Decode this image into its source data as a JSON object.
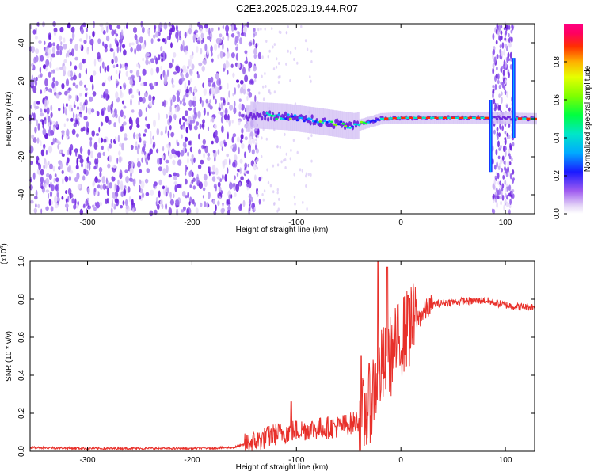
{
  "page": {
    "title": "C2E3.2025.029.19.44.R07"
  },
  "chart_data": [
    {
      "type": "heatmap",
      "title": "C2E3.2025.029.19.44.R07",
      "xlabel": "Height of straight line (km)",
      "ylabel": "Frequency (Hz)",
      "xlim": [
        -355,
        128
      ],
      "ylim": [
        -50,
        50
      ],
      "xticks": [
        -300,
        -200,
        -100,
        0,
        100
      ],
      "yticks": [
        -40,
        -20,
        0,
        20,
        40
      ],
      "xtick_labels": [
        "-300",
        "-200",
        "-100",
        "0",
        "100"
      ],
      "ytick_labels": [
        "-40",
        "-20",
        "0",
        "20",
        "40"
      ],
      "colorbar": {
        "label": "Normalized spectral amplitude",
        "range": [
          0,
          1
        ],
        "ticks": [
          0.0,
          0.2,
          0.4,
          0.6,
          0.8
        ],
        "tick_labels": [
          "0.0",
          "0.2",
          "0.4",
          "0.6",
          "0.8"
        ]
      },
      "regions": [
        {
          "name": "noise",
          "x": [
            -355,
            -135
          ],
          "amplitude": 0.1
        },
        {
          "name": "signal",
          "x": [
            -150,
            128
          ],
          "center_freq": 0,
          "amplitude": 0.9
        },
        {
          "name": "noise-band",
          "x": [
            88,
            108
          ],
          "amplitude": 0.1
        }
      ],
      "signal_center": [
        {
          "x": -145,
          "y": 2
        },
        {
          "x": -110,
          "y": 1
        },
        {
          "x": -70,
          "y": -2
        },
        {
          "x": -45,
          "y": -4
        },
        {
          "x": -20,
          "y": 0
        },
        {
          "x": 0,
          "y": 0.5
        },
        {
          "x": 85,
          "y": 0.5
        },
        {
          "x": 128,
          "y": 0
        }
      ]
    },
    {
      "type": "line",
      "xlabel": "Height of straight line (km)",
      "ylabel": "SNR (10 * v/v)",
      "yscale_note": "(x10",
      "yscale_exp": "4",
      "yscale_close": ")",
      "xlim": [
        -355,
        128
      ],
      "ylim": [
        0,
        1.0
      ],
      "xticks": [
        -300,
        -200,
        -100,
        0,
        100
      ],
      "yticks": [
        0.0,
        0.2,
        0.4,
        0.6,
        0.8,
        1.0
      ],
      "xtick_labels": [
        "-300",
        "-200",
        "-100",
        "0",
        "100"
      ],
      "ytick_labels": [
        "0.0",
        "0.2",
        "0.4",
        "0.6",
        "0.8",
        "1.0"
      ],
      "series": [
        {
          "color": "#e8302a",
          "x": [
            -355,
            -300,
            -250,
            -200,
            -160,
            -140,
            -120,
            -100,
            -80,
            -60,
            -45,
            -35,
            -30,
            -25,
            -20,
            -15,
            -10,
            -5,
            0,
            5,
            10,
            15,
            20,
            25,
            30,
            40,
            50,
            60,
            70,
            80,
            90,
            100,
            110,
            128
          ],
          "y": [
            0.02,
            0.015,
            0.015,
            0.015,
            0.02,
            0.05,
            0.09,
            0.11,
            0.12,
            0.13,
            0.15,
            0.18,
            0.25,
            0.35,
            0.42,
            0.46,
            0.5,
            0.55,
            0.6,
            0.63,
            0.66,
            0.69,
            0.72,
            0.75,
            0.77,
            0.78,
            0.785,
            0.79,
            0.79,
            0.795,
            0.78,
            0.77,
            0.76,
            0.76
          ]
        }
      ],
      "peaks": [
        {
          "x": -22,
          "y": 1.02
        },
        {
          "x": -13,
          "y": 0.97
        },
        {
          "x": -38,
          "y": 0.5
        },
        {
          "x": 7,
          "y": 0.82
        },
        {
          "x": -105,
          "y": 0.26
        }
      ]
    }
  ]
}
